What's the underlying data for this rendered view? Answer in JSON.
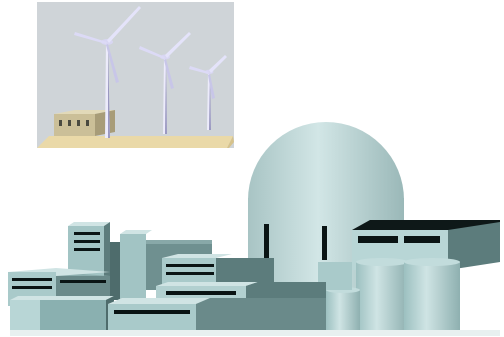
{
  "scene": {
    "inset": {
      "turbine_count": 3,
      "colors": {
        "sky": "#cfd4d8",
        "ground": "#ead9a8",
        "shed": "#cbbf98",
        "turbine": "#ecebfb"
      }
    },
    "plant": {
      "colors": {
        "light": "#b8d6d6",
        "mid": "#94b8b8",
        "dark": "#5c7c7c",
        "window": "#0a1414",
        "dome": "#c6dddd"
      }
    }
  }
}
